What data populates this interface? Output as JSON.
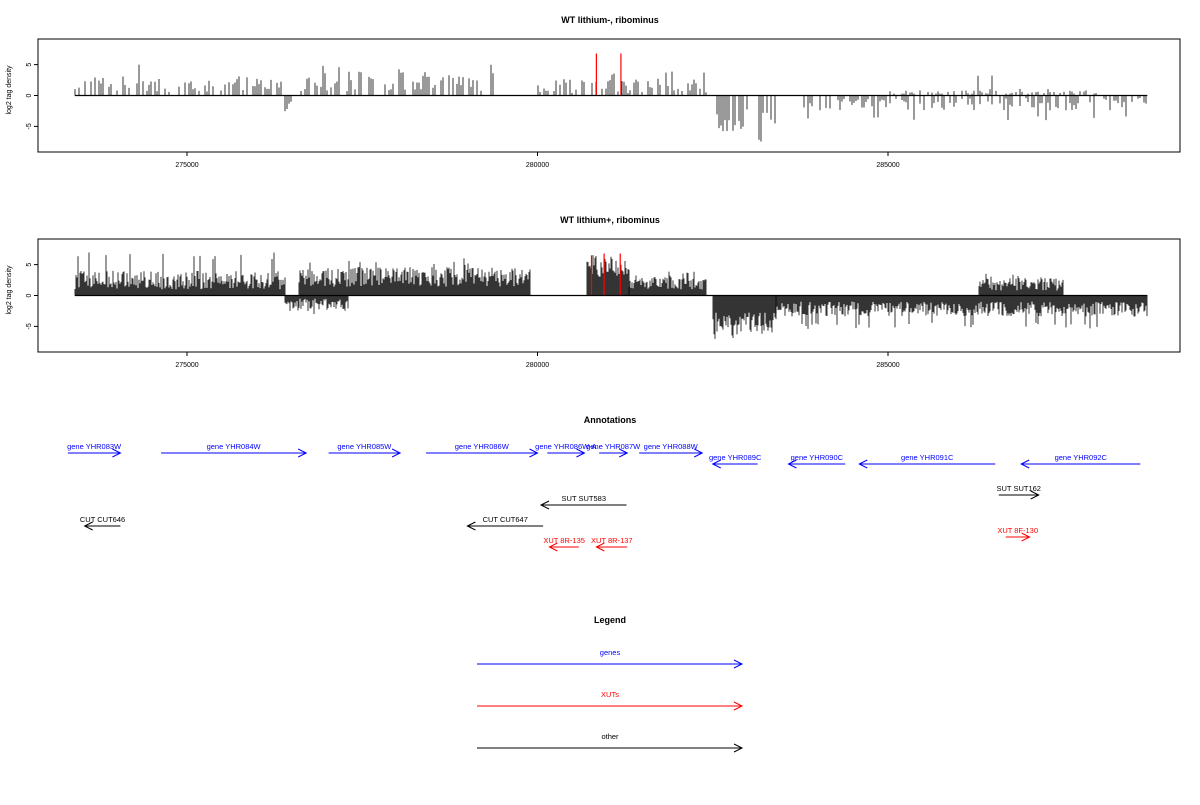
{
  "chart_data": [
    {
      "type": "bar",
      "title": "WT lithium-, ribominus",
      "xlabel": "",
      "ylabel": "log2 tag density",
      "xlim": [
        273300,
        288800
      ],
      "ylim": [
        -8.5,
        8.5
      ],
      "xticks": [
        275000,
        280000,
        285000
      ],
      "xtick_labels": [
        "275000",
        "280000",
        "285000"
      ],
      "yticks": [
        -5,
        0,
        5
      ],
      "ytick_labels": [
        "-5",
        "0",
        "5"
      ],
      "highlight_color": "#ff0000",
      "bar_color": "#000000",
      "highlighted_bars": [
        {
          "x": 280840,
          "y": 6.8
        },
        {
          "x": 281190,
          "y": 6.8
        }
      ],
      "density_profile": [
        {
          "x_from": 273400,
          "x_to": 276400,
          "sign": 1,
          "level": 1.8,
          "spread": 1.3,
          "peak": 5.5
        },
        {
          "x_from": 276400,
          "x_to": 276600,
          "sign": -1,
          "level": 1.8,
          "spread": 0.8,
          "peak": 2.8
        },
        {
          "x_from": 276600,
          "x_to": 279400,
          "sign": 1,
          "level": 2.3,
          "spread": 1.6,
          "peak": 5.2
        },
        {
          "x_from": 280000,
          "x_to": 282400,
          "sign": 1,
          "level": 1.6,
          "spread": 1.2,
          "peak": 4.0
        },
        {
          "x_from": 282500,
          "x_to": 283400,
          "sign": -1,
          "level": 4.0,
          "spread": 1.8,
          "peak": 8.0
        },
        {
          "x_from": 283800,
          "x_to": 288700,
          "sign": -1,
          "level": 1.4,
          "spread": 1.0,
          "peak": 4.2
        },
        {
          "x_from": 285000,
          "x_to": 288000,
          "sign": 1,
          "level": 0.6,
          "spread": 0.5,
          "peak": 3.8
        }
      ]
    },
    {
      "type": "bar",
      "title": "WT lithium+, ribominus",
      "xlabel": "",
      "ylabel": "log2 tag density",
      "xlim": [
        273300,
        288800
      ],
      "ylim": [
        -8.5,
        8.5
      ],
      "xticks": [
        275000,
        280000,
        285000
      ],
      "xtick_labels": [
        "275000",
        "280000",
        "285000"
      ],
      "yticks": [
        -5,
        0,
        5
      ],
      "ytick_labels": [
        "-5",
        "0",
        "5"
      ],
      "highlight_color": "#ff0000",
      "bar_color": "#000000",
      "highlighted_bars": [
        {
          "x": 280770,
          "y": 6.5
        },
        {
          "x": 280950,
          "y": 6.8
        },
        {
          "x": 281180,
          "y": 6.8
        }
      ],
      "density_profile": [
        {
          "x_from": 273400,
          "x_to": 276400,
          "sign": 1,
          "level": 2.5,
          "spread": 1.5,
          "peak": 7.0
        },
        {
          "x_from": 276400,
          "x_to": 277300,
          "sign": -1,
          "level": 1.5,
          "spread": 1.0,
          "peak": 3.5
        },
        {
          "x_from": 276600,
          "x_to": 279900,
          "sign": 1,
          "level": 3.0,
          "spread": 1.6,
          "peak": 6.2
        },
        {
          "x_from": 280700,
          "x_to": 281300,
          "sign": 1,
          "level": 4.5,
          "spread": 1.5,
          "peak": 6.8
        },
        {
          "x_from": 281300,
          "x_to": 282400,
          "sign": 1,
          "level": 2.0,
          "spread": 1.0,
          "peak": 4.0
        },
        {
          "x_from": 282500,
          "x_to": 283400,
          "sign": -1,
          "level": 4.5,
          "spread": 1.8,
          "peak": 7.8
        },
        {
          "x_from": 283400,
          "x_to": 288700,
          "sign": -1,
          "level": 2.2,
          "spread": 1.2,
          "peak": 5.5
        },
        {
          "x_from": 286300,
          "x_to": 287500,
          "sign": 1,
          "level": 1.8,
          "spread": 1.0,
          "peak": 3.5
        }
      ]
    }
  ],
  "annotations": {
    "title": "Annotations",
    "colors": {
      "genes": "#0000ff",
      "XUTs": "#ff0000",
      "other": "#000000"
    },
    "features": [
      {
        "label": "gene YHR083W",
        "class": "genes",
        "strand": "+",
        "start": 273300,
        "end": 274050,
        "row": 0
      },
      {
        "label": "gene YHR084W",
        "class": "genes",
        "strand": "+",
        "start": 274630,
        "end": 276700,
        "row": 0
      },
      {
        "label": "gene YHR085W",
        "class": "genes",
        "strand": "+",
        "start": 277020,
        "end": 278040,
        "row": 0
      },
      {
        "label": "gene YHR086W",
        "class": "genes",
        "strand": "+",
        "start": 278410,
        "end": 280000,
        "row": 0
      },
      {
        "label": "gene YHR086W-A",
        "class": "genes",
        "strand": "+",
        "start": 280140,
        "end": 280670,
        "row": 0
      },
      {
        "label": "gene YHR087W",
        "class": "genes",
        "strand": "+",
        "start": 280880,
        "end": 281280,
        "row": 0
      },
      {
        "label": "gene YHR088W",
        "class": "genes",
        "strand": "+",
        "start": 281450,
        "end": 282350,
        "row": 0
      },
      {
        "label": "gene YHR089C",
        "class": "genes",
        "strand": "-",
        "start": 282500,
        "end": 283140,
        "row": 1
      },
      {
        "label": "gene YHR090C",
        "class": "genes",
        "strand": "-",
        "start": 283580,
        "end": 284390,
        "row": 1
      },
      {
        "label": "gene YHR091C",
        "class": "genes",
        "strand": "-",
        "start": 284590,
        "end": 286530,
        "row": 1
      },
      {
        "label": "gene YHR092C",
        "class": "genes",
        "strand": "-",
        "start": 286900,
        "end": 288600,
        "row": 1
      },
      {
        "label": "SUT SUT583",
        "class": "other",
        "strand": "-",
        "start": 280050,
        "end": 281270,
        "row": 2
      },
      {
        "label": "SUT SUT162",
        "class": "other",
        "strand": "+",
        "start": 286580,
        "end": 287150,
        "row": 3
      },
      {
        "label": "CUT CUT646",
        "class": "other",
        "strand": "-",
        "start": 273540,
        "end": 274050,
        "row": 4
      },
      {
        "label": "CUT CUT647",
        "class": "other",
        "strand": "-",
        "start": 279000,
        "end": 280080,
        "row": 4
      },
      {
        "label": "XUT 8F-130",
        "class": "XUTs",
        "strand": "+",
        "start": 286680,
        "end": 287020,
        "row": 5
      },
      {
        "label": "XUT 8R-135",
        "class": "XUTs",
        "strand": "-",
        "start": 280170,
        "end": 280590,
        "row": 6
      },
      {
        "label": "XUT 8R-137",
        "class": "XUTs",
        "strand": "-",
        "start": 280840,
        "end": 281280,
        "row": 6
      }
    ]
  },
  "legend": {
    "title": "Legend",
    "entries": [
      {
        "label": "genes",
        "color": "#0000ff"
      },
      {
        "label": "XUTs",
        "color": "#ff0000"
      },
      {
        "label": "other",
        "color": "#000000"
      }
    ]
  }
}
